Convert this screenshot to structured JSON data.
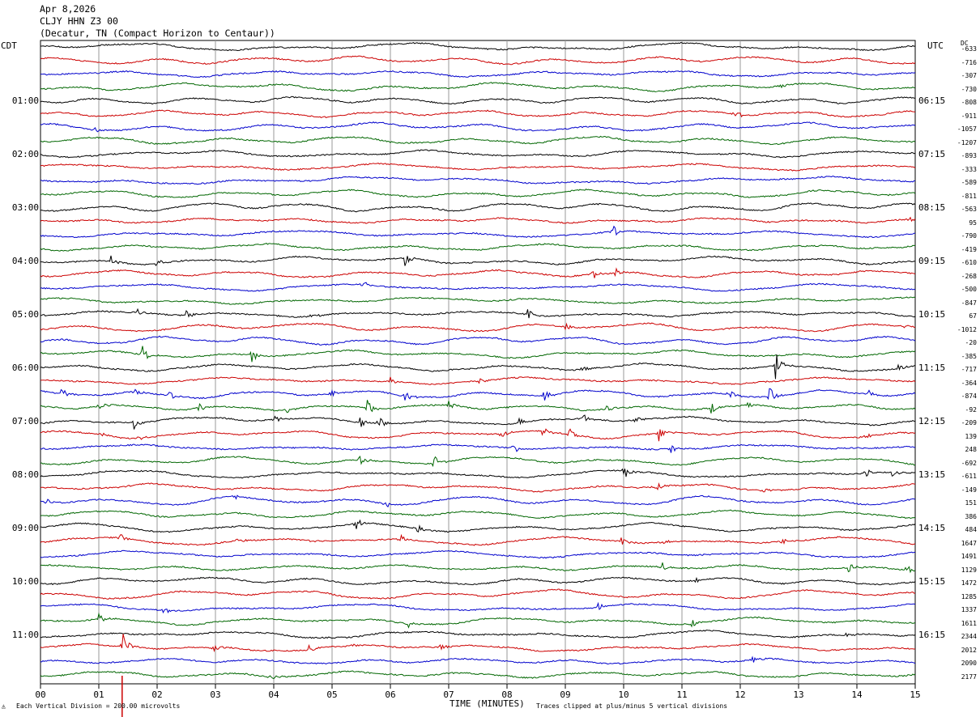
{
  "header": {
    "date": "Apr 8,2026",
    "station": "CLJY HHN Z3 00",
    "location": "(Decatur, TN (Compact Horizon to Centaur))"
  },
  "left_label": "CDT",
  "right_label": "UTC",
  "dc_label": "DC",
  "footer": {
    "scale": "Each Vertical Division =  200.00 microvolts",
    "xlabel": "TIME (MINUTES)",
    "clip_note": "Traces clipped at plus/minus 5 vertical divisions"
  },
  "colors": {
    "trace_cycle": [
      "#000000",
      "#cc0000",
      "#0000cc",
      "#006600"
    ],
    "grid": "#999999",
    "scale_marker": "#cc0000"
  },
  "chart_data": {
    "type": "line",
    "title": "",
    "xlabel": "TIME (MINUTES)",
    "ylabel": "",
    "xlim": [
      0,
      15
    ],
    "x_ticks": [
      "00",
      "01",
      "02",
      "03",
      "04",
      "05",
      "06",
      "07",
      "08",
      "09",
      "10",
      "11",
      "12",
      "13",
      "14",
      "15"
    ],
    "rows_per_hour": 4,
    "row_count": 48,
    "left_hour_labels": [
      "01:00",
      "02:00",
      "03:00",
      "04:00",
      "05:00",
      "06:00",
      "07:00",
      "08:00",
      "09:00",
      "10:00",
      "11:00"
    ],
    "right_hour_labels": [
      "06:15",
      "07:15",
      "08:15",
      "09:15",
      "10:15",
      "11:15",
      "12:15",
      "13:15",
      "14:15",
      "15:15",
      "16:15"
    ],
    "dc_offsets": [
      "-633",
      "-716",
      "-307",
      "-730",
      "-808",
      "-911",
      "-1057",
      "-1207",
      "-893",
      "-333",
      "-589",
      "-811",
      "-563",
      "95",
      "-790",
      "-419",
      "-610",
      "-268",
      "-500",
      "-847",
      "67",
      "-1012",
      "-20",
      "-385",
      "-717",
      "-364",
      "-874",
      "-92",
      "-209",
      "139",
      "248",
      "-692",
      "-611",
      "-149",
      "151",
      "386",
      "484",
      "1647",
      "1491",
      "1129",
      "1472",
      "1285",
      "1337",
      "1611",
      "2344",
      "2012",
      "2090",
      "2177"
    ],
    "events": [
      {
        "row": 3,
        "minute": 12.65,
        "amp": 1.0
      },
      {
        "row": 5,
        "minute": 11.9,
        "amp": 1.0
      },
      {
        "row": 6,
        "minute": 0.9,
        "amp": 1.0
      },
      {
        "row": 13,
        "minute": 14.9,
        "amp": 0.6
      },
      {
        "row": 14,
        "minute": 9.8,
        "amp": 1.8
      },
      {
        "row": 16,
        "minute": 1.2,
        "amp": 1.2
      },
      {
        "row": 16,
        "minute": 2.0,
        "amp": 1.0
      },
      {
        "row": 16,
        "minute": 6.25,
        "amp": 1.6
      },
      {
        "row": 17,
        "minute": 9.45,
        "amp": 1.2
      },
      {
        "row": 17,
        "minute": 9.85,
        "amp": 1.0
      },
      {
        "row": 18,
        "minute": 5.5,
        "amp": 1.0
      },
      {
        "row": 20,
        "minute": 1.65,
        "amp": 1.0
      },
      {
        "row": 20,
        "minute": 2.5,
        "amp": 1.0
      },
      {
        "row": 20,
        "minute": 4.6,
        "amp": 1.0
      },
      {
        "row": 20,
        "minute": 8.35,
        "amp": 1.0
      },
      {
        "row": 21,
        "minute": 9.0,
        "amp": 0.8
      },
      {
        "row": 21,
        "minute": 14.8,
        "amp": 0.6
      },
      {
        "row": 23,
        "minute": 1.75,
        "amp": 1.6
      },
      {
        "row": 23,
        "minute": 3.6,
        "amp": 1.6
      },
      {
        "row": 24,
        "minute": 9.3,
        "amp": 1.0
      },
      {
        "row": 24,
        "minute": 12.6,
        "amp": 3.0
      },
      {
        "row": 24,
        "minute": 14.7,
        "amp": 0.8
      },
      {
        "row": 25,
        "minute": 6.0,
        "amp": 0.8
      },
      {
        "row": 25,
        "minute": 7.5,
        "amp": 0.8
      },
      {
        "row": 26,
        "minute": 0.35,
        "amp": 1.5
      },
      {
        "row": 26,
        "minute": 1.6,
        "amp": 1.0
      },
      {
        "row": 26,
        "minute": 2.2,
        "amp": 1.0
      },
      {
        "row": 26,
        "minute": 4.95,
        "amp": 1.0
      },
      {
        "row": 26,
        "minute": 6.25,
        "amp": 1.0
      },
      {
        "row": 26,
        "minute": 8.6,
        "amp": 1.4
      },
      {
        "row": 26,
        "minute": 11.8,
        "amp": 1.0
      },
      {
        "row": 26,
        "minute": 12.5,
        "amp": 1.8
      },
      {
        "row": 26,
        "minute": 14.2,
        "amp": 1.0
      },
      {
        "row": 27,
        "minute": 1.0,
        "amp": 1.0
      },
      {
        "row": 27,
        "minute": 2.7,
        "amp": 1.0
      },
      {
        "row": 27,
        "minute": 4.2,
        "amp": 1.0
      },
      {
        "row": 27,
        "minute": 5.6,
        "amp": 1.6
      },
      {
        "row": 27,
        "minute": 7.0,
        "amp": 0.8
      },
      {
        "row": 27,
        "minute": 9.7,
        "amp": 0.8
      },
      {
        "row": 27,
        "minute": 11.5,
        "amp": 1.0
      },
      {
        "row": 27,
        "minute": 12.1,
        "amp": 0.8
      },
      {
        "row": 28,
        "minute": 1.6,
        "amp": 1.4
      },
      {
        "row": 28,
        "minute": 4.0,
        "amp": 1.0
      },
      {
        "row": 28,
        "minute": 5.45,
        "amp": 1.4
      },
      {
        "row": 28,
        "minute": 5.8,
        "amp": 1.4
      },
      {
        "row": 28,
        "minute": 8.2,
        "amp": 1.0
      },
      {
        "row": 28,
        "minute": 9.3,
        "amp": 1.0
      },
      {
        "row": 28,
        "minute": 10.2,
        "amp": 1.0
      },
      {
        "row": 29,
        "minute": 1.0,
        "amp": 0.8
      },
      {
        "row": 29,
        "minute": 1.65,
        "amp": 0.8
      },
      {
        "row": 29,
        "minute": 7.9,
        "amp": 1.0
      },
      {
        "row": 29,
        "minute": 8.6,
        "amp": 1.0
      },
      {
        "row": 29,
        "minute": 9.05,
        "amp": 1.4
      },
      {
        "row": 29,
        "minute": 10.6,
        "amp": 1.4
      },
      {
        "row": 29,
        "minute": 14.15,
        "amp": 1.0
      },
      {
        "row": 30,
        "minute": 8.1,
        "amp": 1.0
      },
      {
        "row": 30,
        "minute": 10.8,
        "amp": 0.8
      },
      {
        "row": 31,
        "minute": 5.45,
        "amp": 1.4
      },
      {
        "row": 31,
        "minute": 6.75,
        "amp": 1.6
      },
      {
        "row": 32,
        "minute": 10.0,
        "amp": 1.6
      },
      {
        "row": 32,
        "minute": 14.15,
        "amp": 1.0
      },
      {
        "row": 32,
        "minute": 14.6,
        "amp": 0.8
      },
      {
        "row": 33,
        "minute": 10.55,
        "amp": 1.0
      },
      {
        "row": 33,
        "minute": 12.35,
        "amp": 0.6
      },
      {
        "row": 34,
        "minute": 0.1,
        "amp": 1.2
      },
      {
        "row": 34,
        "minute": 3.3,
        "amp": 0.8
      },
      {
        "row": 34,
        "minute": 5.9,
        "amp": 0.8
      },
      {
        "row": 36,
        "minute": 5.4,
        "amp": 1.2
      },
      {
        "row": 36,
        "minute": 6.45,
        "amp": 0.8
      },
      {
        "row": 37,
        "minute": 1.35,
        "amp": 1.0
      },
      {
        "row": 37,
        "minute": 3.3,
        "amp": 0.8
      },
      {
        "row": 37,
        "minute": 4.6,
        "amp": 0.8
      },
      {
        "row": 37,
        "minute": 6.15,
        "amp": 1.2
      },
      {
        "row": 37,
        "minute": 9.95,
        "amp": 1.0
      },
      {
        "row": 37,
        "minute": 10.65,
        "amp": 0.8
      },
      {
        "row": 37,
        "minute": 12.7,
        "amp": 1.0
      },
      {
        "row": 39,
        "minute": 10.65,
        "amp": 1.0
      },
      {
        "row": 39,
        "minute": 13.85,
        "amp": 1.0
      },
      {
        "row": 39,
        "minute": 14.85,
        "amp": 1.2
      },
      {
        "row": 40,
        "minute": 11.2,
        "amp": 0.8
      },
      {
        "row": 42,
        "minute": 2.1,
        "amp": 0.8
      },
      {
        "row": 42,
        "minute": 9.55,
        "amp": 0.8
      },
      {
        "row": 43,
        "minute": 1.0,
        "amp": 1.0
      },
      {
        "row": 43,
        "minute": 6.3,
        "amp": 0.8
      },
      {
        "row": 43,
        "minute": 11.15,
        "amp": 0.8
      },
      {
        "row": 44,
        "minute": 13.8,
        "amp": 0.8
      },
      {
        "row": 45,
        "minute": 1.4,
        "amp": 2.8
      },
      {
        "row": 45,
        "minute": 2.95,
        "amp": 1.2
      },
      {
        "row": 45,
        "minute": 4.6,
        "amp": 0.8
      },
      {
        "row": 45,
        "minute": 5.3,
        "amp": 0.8
      },
      {
        "row": 45,
        "minute": 6.85,
        "amp": 1.0
      },
      {
        "row": 46,
        "minute": 12.2,
        "amp": 0.6
      },
      {
        "row": 47,
        "minute": 3.9,
        "amp": 0.8
      }
    ],
    "grid": true
  }
}
